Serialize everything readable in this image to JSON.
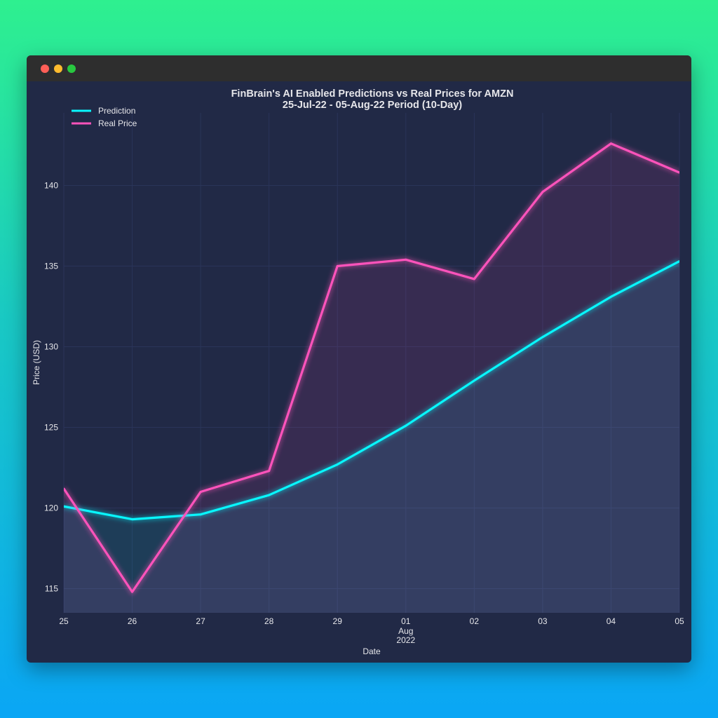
{
  "window": {
    "controls": [
      "close",
      "minimize",
      "maximize"
    ]
  },
  "chart_data": {
    "type": "line",
    "title": "FinBrain's AI Enabled Predictions vs Real Prices for AMZN",
    "subtitle": "25-Jul-22 - 05-Aug-22 Period (10-Day)",
    "xlabel": "Date",
    "ylabel": "Price (USD)",
    "ylim": [
      113.5,
      144.5
    ],
    "yticks": [
      115,
      120,
      125,
      130,
      135,
      140
    ],
    "x": [
      "2022-07-25",
      "2022-07-26",
      "2022-07-27",
      "2022-07-28",
      "2022-07-29",
      "2022-08-01",
      "2022-08-02",
      "2022-08-03",
      "2022-08-04",
      "2022-08-05"
    ],
    "xtick_labels": [
      "25",
      "26",
      "27",
      "28",
      "29",
      "01",
      "02",
      "03",
      "04",
      "05"
    ],
    "xtick_sublabel": {
      "index": 5,
      "lines": [
        "Aug",
        "2022"
      ]
    },
    "series": [
      {
        "name": "Prediction",
        "color": "#08F7FE",
        "values": [
          120.1,
          119.3,
          119.6,
          120.8,
          122.7,
          125.1,
          127.9,
          130.6,
          133.1,
          135.3
        ]
      },
      {
        "name": "Real Price",
        "color": "#FE53BB",
        "values": [
          121.2,
          114.8,
          121.0,
          122.3,
          135.0,
          135.4,
          134.2,
          139.6,
          142.6,
          140.8
        ]
      }
    ],
    "grid": true,
    "legend": "top-left",
    "colors": {
      "background": "#212946",
      "grid": "#2A3459",
      "text": "#e6e6ea"
    }
  }
}
